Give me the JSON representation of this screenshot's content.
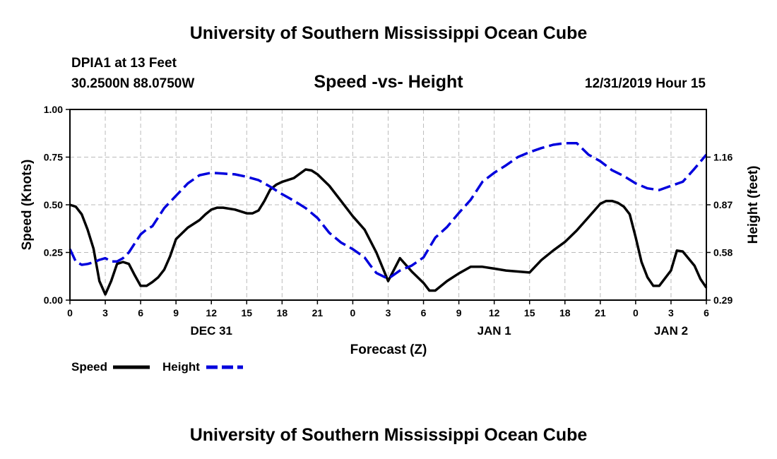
{
  "header": {
    "title_top": "University of Southern Mississippi Ocean Cube",
    "title_bottom": "University of Southern Mississippi Ocean Cube",
    "station": "DPIA1 at 13 Feet",
    "location": "30.2500N 88.0750W",
    "plot_title": "Speed -vs- Height",
    "datetime": "12/31/2019 Hour 15"
  },
  "colors": {
    "speed": "#000000",
    "height": "#0000dd",
    "grid": "#bbbbbb"
  },
  "chart_data": {
    "type": "line",
    "title": "Speed -vs- Height",
    "xlabel": "Forecast (Z)",
    "ylabel_left": "Speed (Knots)",
    "ylabel_right": "Height (feet)",
    "x_unit": "forecast hour from 00Z Dec 31",
    "xlim": [
      0,
      54
    ],
    "x_ticks": [
      0,
      3,
      6,
      9,
      12,
      15,
      18,
      21,
      24,
      27,
      30,
      33,
      36,
      39,
      42,
      45,
      48,
      51,
      54
    ],
    "x_tick_labels": [
      "0",
      "3",
      "6",
      "9",
      "12",
      "15",
      "18",
      "21",
      "0",
      "3",
      "6",
      "9",
      "12",
      "15",
      "18",
      "21",
      "0",
      "3",
      "6"
    ],
    "day_labels": [
      {
        "x": 12,
        "label": "DEC 31"
      },
      {
        "x": 36,
        "label": "JAN 1"
      },
      {
        "x": 51,
        "label": "JAN 2"
      }
    ],
    "ylim_left": [
      0,
      1
    ],
    "left_ticks": [
      0,
      0.25,
      0.5,
      0.75,
      1
    ],
    "left_tick_labels": [
      "0.00",
      "0.25",
      "0.50",
      "0.75",
      "1.00"
    ],
    "ylim_right": [
      0.29,
      1.45
    ],
    "right_ticks": [
      0.29,
      0.58,
      0.87,
      1.16
    ],
    "right_tick_labels": [
      "0.29",
      "0.58",
      "0.87",
      "1.16"
    ],
    "grid": true,
    "legend": [
      {
        "name": "Speed",
        "style": "solid"
      },
      {
        "name": "Height",
        "style": "dashed"
      }
    ],
    "series": [
      {
        "name": "Speed",
        "axis": "left",
        "style": "solid",
        "x": [
          0,
          0.5,
          1,
          1.5,
          2,
          2.5,
          3,
          3.5,
          4,
          4.5,
          5,
          5.5,
          6,
          6.5,
          7,
          7.5,
          8,
          8.5,
          9,
          9.5,
          10,
          11,
          11.5,
          12,
          12.5,
          13,
          14,
          14.5,
          15,
          15.5,
          16,
          16.5,
          17,
          17.5,
          18,
          19,
          20,
          20.5,
          21,
          22,
          23,
          24,
          25,
          26,
          27,
          28,
          29,
          30,
          30.5,
          31,
          32,
          33,
          34,
          35,
          36,
          37,
          38,
          39,
          40,
          41,
          42,
          43,
          44,
          44.5,
          45,
          45.5,
          46,
          46.5,
          47,
          47.5,
          48,
          48.5,
          49,
          49.5,
          50,
          51,
          51.5,
          52,
          53,
          53.5,
          54
        ],
        "y": [
          0.5,
          0.49,
          0.45,
          0.37,
          0.27,
          0.1,
          0.03,
          0.1,
          0.19,
          0.2,
          0.19,
          0.13,
          0.075,
          0.075,
          0.095,
          0.12,
          0.16,
          0.23,
          0.32,
          0.35,
          0.38,
          0.42,
          0.45,
          0.475,
          0.485,
          0.485,
          0.475,
          0.465,
          0.455,
          0.455,
          0.47,
          0.52,
          0.58,
          0.605,
          0.62,
          0.64,
          0.685,
          0.68,
          0.66,
          0.6,
          0.52,
          0.44,
          0.37,
          0.25,
          0.1,
          0.22,
          0.15,
          0.09,
          0.05,
          0.05,
          0.1,
          0.14,
          0.175,
          0.175,
          0.165,
          0.155,
          0.15,
          0.145,
          0.21,
          0.26,
          0.305,
          0.365,
          0.435,
          0.47,
          0.505,
          0.52,
          0.52,
          0.51,
          0.49,
          0.45,
          0.33,
          0.2,
          0.12,
          0.075,
          0.075,
          0.155,
          0.26,
          0.255,
          0.18,
          0.11,
          0.065
        ]
      },
      {
        "name": "Height",
        "axis": "right",
        "style": "dashed",
        "x": [
          0,
          0.5,
          1,
          1.5,
          2,
          2.5,
          3,
          3.5,
          4,
          4.5,
          5,
          6,
          6.5,
          7,
          8,
          9,
          10,
          11,
          12,
          13,
          14,
          15,
          16,
          17,
          18,
          19,
          20,
          21,
          22,
          23,
          24,
          25,
          25.5,
          26,
          27,
          28,
          29,
          30,
          31,
          32,
          33,
          34,
          35,
          36,
          37,
          38,
          39,
          40,
          41,
          42,
          43,
          44,
          45,
          46,
          47,
          48,
          49,
          50,
          51,
          52,
          53,
          54
        ],
        "y": [
          0.6,
          0.525,
          0.505,
          0.51,
          0.52,
          0.535,
          0.545,
          0.525,
          0.525,
          0.545,
          0.58,
          0.69,
          0.72,
          0.74,
          0.85,
          0.925,
          1.0,
          1.05,
          1.065,
          1.06,
          1.055,
          1.04,
          1.02,
          0.98,
          0.935,
          0.895,
          0.85,
          0.79,
          0.7,
          0.64,
          0.6,
          0.55,
          0.5,
          0.455,
          0.42,
          0.47,
          0.5,
          0.55,
          0.67,
          0.735,
          0.82,
          0.9,
          1.01,
          1.065,
          1.11,
          1.16,
          1.19,
          1.215,
          1.235,
          1.245,
          1.245,
          1.175,
          1.135,
          1.08,
          1.045,
          1.0,
          0.97,
          0.96,
          0.985,
          1.01,
          1.09,
          1.175
        ]
      }
    ]
  }
}
